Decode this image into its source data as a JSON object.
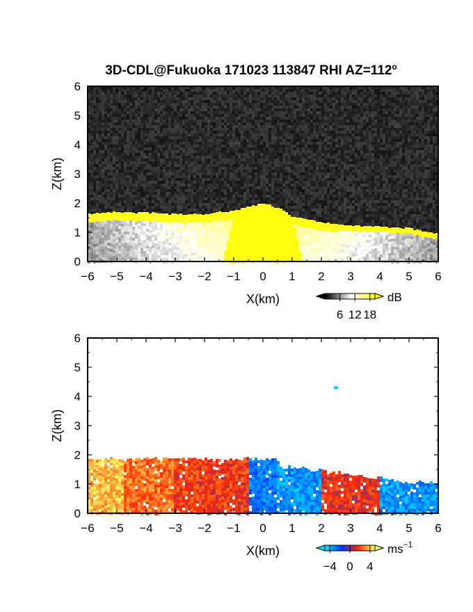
{
  "figure": {
    "title_main": "3D-CDL@Fukuoka 171023 113847 RHI AZ=112",
    "title_degree": "o"
  },
  "chart_data": [
    {
      "type": "heatmap",
      "name": "reflectivity",
      "xlabel": "X(km)",
      "ylabel": "Z(km)",
      "xlim": [
        -6,
        6
      ],
      "ylim": [
        0,
        6
      ],
      "xticks": [
        "-6",
        "-5",
        "-4",
        "-3",
        "-2",
        "-1",
        "0",
        "1",
        "2",
        "3",
        "4",
        "5",
        "6"
      ],
      "yticks": [
        "0",
        "1",
        "2",
        "3",
        "4",
        "5",
        "6"
      ],
      "background": "#262626",
      "colorbar": {
        "unit": "dB",
        "ticks": [
          6,
          12,
          18
        ],
        "tick_labels": [
          "6",
          "12",
          "18"
        ],
        "range": [
          0,
          20
        ],
        "colors": [
          "#000000",
          "#ffffff",
          "#ffff00"
        ]
      },
      "layer_top_km": [
        {
          "x": -6.0,
          "z": 1.62
        },
        {
          "x": -5.0,
          "z": 1.68
        },
        {
          "x": -4.0,
          "z": 1.66
        },
        {
          "x": -3.0,
          "z": 1.6
        },
        {
          "x": -2.0,
          "z": 1.62
        },
        {
          "x": -1.0,
          "z": 1.72
        },
        {
          "x": 0.0,
          "z": 2.0
        },
        {
          "x": 0.6,
          "z": 1.8
        },
        {
          "x": 1.0,
          "z": 1.52
        },
        {
          "x": 2.0,
          "z": 1.32
        },
        {
          "x": 3.0,
          "z": 1.22
        },
        {
          "x": 4.0,
          "z": 1.18
        },
        {
          "x": 5.0,
          "z": 1.12
        },
        {
          "x": 6.0,
          "z": 0.95
        }
      ],
      "saturated_region_note": "values >= 18 dB around X=-1..1 km up to ~1.8 km and in a thin band along the layer top"
    },
    {
      "type": "heatmap",
      "name": "radial_velocity",
      "xlabel": "X(km)",
      "ylabel": "Z(km)",
      "xlim": [
        -6,
        6
      ],
      "ylim": [
        0,
        6
      ],
      "xticks": [
        "-6",
        "-5",
        "-4",
        "-3",
        "-2",
        "-1",
        "0",
        "1",
        "2",
        "3",
        "4",
        "5",
        "6"
      ],
      "yticks": [
        "0",
        "1",
        "2",
        "3",
        "4",
        "5",
        "6"
      ],
      "background": "#ffffff",
      "colorbar": {
        "unit": "ms",
        "unit_exponent": "−1",
        "ticks": [
          -4,
          0,
          4
        ],
        "tick_labels": [
          "−4",
          "0",
          "4"
        ],
        "range": [
          -5,
          5
        ],
        "colors": [
          "#00e5ff",
          "#0033ff",
          "#ff2a00",
          "#ffff66"
        ]
      },
      "segments": [
        {
          "x_range": [
            -6.0,
            -4.8
          ],
          "velocity_ms": 4.0
        },
        {
          "x_range": [
            -4.8,
            -3.0
          ],
          "velocity_ms": 2.8
        },
        {
          "x_range": [
            -3.0,
            -0.5
          ],
          "velocity_ms": 1.8
        },
        {
          "x_range": [
            -0.5,
            0.5
          ],
          "velocity_ms": -3.0
        },
        {
          "x_range": [
            0.5,
            2.0
          ],
          "velocity_ms": -3.5
        },
        {
          "x_range": [
            2.0,
            4.0
          ],
          "velocity_ms": 1.5
        },
        {
          "x_range": [
            4.0,
            6.0
          ],
          "velocity_ms": -3.5
        }
      ],
      "isolated_echo": {
        "x": 2.5,
        "z": 4.3,
        "velocity_ms": -4.5
      }
    }
  ]
}
